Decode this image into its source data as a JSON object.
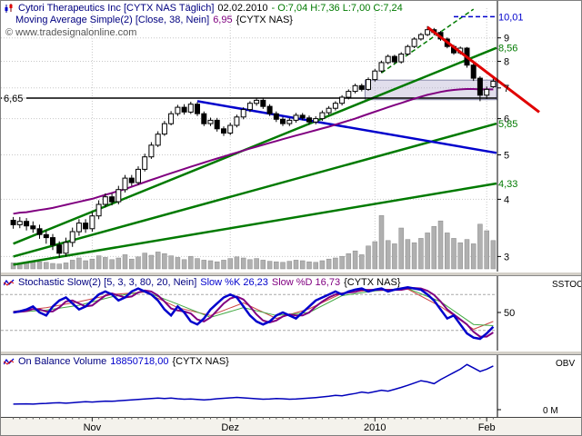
{
  "colors": {
    "navy": "#000080",
    "green_ohlc": "#007a00",
    "purple": "#800080",
    "blue": "#0000cc",
    "red": "#e00000",
    "trend_green": "#007a00",
    "grid": "#c8c8c8",
    "volume": "#b0b0b0",
    "volume_edge": "#8a8a8a",
    "bg": "#ffffff",
    "chrome": "#d4d0c8",
    "obv_line": "#0000bb"
  },
  "main_pane": {
    "header": {
      "title": "Cytori Therapeutics Inc [CYTX NAS  Täglich]",
      "date": "02.02.2010",
      "ohlc": "- O:7,04 H:7,36 L:7,00 C:7,24"
    },
    "ma_header": {
      "name": "Moving Average Simple(2) [Close, 38, Nein]",
      "value": "6,95",
      "symbol": "{CYTX NAS}"
    },
    "copyright": "© www.tradesignalonline.com",
    "left_label": "6,65"
  },
  "stoch_pane": {
    "header": {
      "name": "Stochastic Slow(2) [5, 3, 3, 80, 20, Nein]",
      "k_label": "Slow %K 26,23",
      "d_label": "Slow %D 16,73",
      "symbol": "{CYTX NAS}"
    },
    "axis_label": "SSTOC",
    "mid_label": "50",
    "mid_value": 50
  },
  "obv_pane": {
    "header": {
      "name": "On Balance Volume",
      "value": "18850718,00",
      "symbol": "{CYTX NAS}"
    },
    "axis_label": "OBV",
    "zero_label": "0 M",
    "zero_value": 0
  },
  "time_axis": {
    "labels": [
      {
        "text": "Nov",
        "day": 12
      },
      {
        "text": "Dez",
        "day": 33
      },
      {
        "text": "2010",
        "day": 55
      },
      {
        "text": "Feb",
        "day": 72
      }
    ]
  },
  "chart_data": {
    "type": "candlestick",
    "symbol": "CYTX NAS",
    "instrument": "Cytori Therapeutics Inc",
    "timeframe": "Täglich",
    "last_date": "02.02.2010",
    "last_ohlc": {
      "o": 7.04,
      "h": 7.36,
      "l": 7.0,
      "c": 7.24
    },
    "ma_period": 38,
    "ma_last_value": 6.95,
    "obv_last_value": 18850718.0,
    "stoch_last": {
      "k": 26.23,
      "d": 16.73
    },
    "y_scale": "log",
    "y_range": [
      2.82,
      10.45
    ],
    "y_axis": {
      "ticks": [
        3,
        4,
        5,
        6,
        7,
        8,
        9
      ],
      "special": [
        {
          "text": "10,01",
          "price": 10.01,
          "color": "blue"
        },
        {
          "text": "8,56",
          "price": 8.56,
          "color": "green"
        },
        {
          "text": "5,85",
          "price": 5.85,
          "color": "green"
        },
        {
          "text": "4,33",
          "price": 4.33,
          "color": "green"
        }
      ]
    },
    "candles": [
      [
        3.6,
        3.66,
        3.45,
        3.52
      ],
      [
        3.52,
        3.66,
        3.46,
        3.58
      ],
      [
        3.58,
        3.64,
        3.42,
        3.5
      ],
      [
        3.5,
        3.58,
        3.38,
        3.45
      ],
      [
        3.45,
        3.52,
        3.28,
        3.35
      ],
      [
        3.35,
        3.42,
        3.2,
        3.3
      ],
      [
        3.3,
        3.36,
        3.1,
        3.18
      ],
      [
        3.18,
        3.24,
        2.98,
        3.05
      ],
      [
        3.05,
        3.3,
        3.0,
        3.22
      ],
      [
        3.22,
        3.47,
        3.15,
        3.4
      ],
      [
        3.4,
        3.62,
        3.33,
        3.55
      ],
      [
        3.55,
        3.62,
        3.38,
        3.45
      ],
      [
        3.45,
        3.75,
        3.4,
        3.68
      ],
      [
        3.68,
        3.98,
        3.62,
        3.9
      ],
      [
        3.9,
        4.12,
        3.84,
        4.05
      ],
      [
        4.05,
        4.12,
        3.88,
        3.95
      ],
      [
        3.95,
        4.28,
        3.9,
        4.2
      ],
      [
        4.2,
        4.52,
        4.14,
        4.45
      ],
      [
        4.45,
        4.52,
        4.28,
        4.35
      ],
      [
        4.35,
        4.72,
        4.3,
        4.65
      ],
      [
        4.65,
        5.03,
        4.6,
        4.95
      ],
      [
        4.95,
        5.33,
        4.9,
        5.25
      ],
      [
        5.25,
        5.63,
        5.2,
        5.55
      ],
      [
        5.55,
        5.93,
        5.5,
        5.85
      ],
      [
        5.85,
        6.23,
        5.8,
        6.15
      ],
      [
        6.15,
        6.43,
        6.08,
        6.35
      ],
      [
        6.35,
        6.45,
        6.12,
        6.2
      ],
      [
        6.2,
        6.53,
        6.14,
        6.45
      ],
      [
        6.45,
        6.52,
        6.08,
        6.15
      ],
      [
        6.15,
        6.22,
        5.78,
        5.85
      ],
      [
        5.85,
        6.03,
        5.78,
        5.95
      ],
      [
        5.95,
        6.02,
        5.62,
        5.7
      ],
      [
        5.7,
        5.77,
        5.5,
        5.58
      ],
      [
        5.58,
        5.88,
        5.52,
        5.8
      ],
      [
        5.8,
        6.12,
        5.74,
        6.05
      ],
      [
        6.05,
        6.35,
        5.98,
        6.28
      ],
      [
        6.28,
        6.55,
        6.2,
        6.48
      ],
      [
        6.48,
        6.66,
        6.4,
        6.58
      ],
      [
        6.58,
        6.65,
        6.3,
        6.38
      ],
      [
        6.38,
        6.45,
        6.08,
        6.15
      ],
      [
        6.15,
        6.22,
        5.9,
        5.98
      ],
      [
        5.98,
        6.05,
        5.78,
        5.85
      ],
      [
        5.85,
        6.02,
        5.78,
        5.95
      ],
      [
        5.95,
        6.17,
        5.88,
        6.1
      ],
      [
        6.1,
        6.17,
        5.95,
        6.02
      ],
      [
        6.02,
        6.09,
        5.82,
        5.9
      ],
      [
        5.9,
        6.07,
        5.83,
        6.0
      ],
      [
        6.0,
        6.25,
        5.93,
        6.18
      ],
      [
        6.18,
        6.39,
        6.11,
        6.32
      ],
      [
        6.32,
        6.55,
        6.25,
        6.48
      ],
      [
        6.48,
        6.75,
        6.41,
        6.68
      ],
      [
        6.68,
        6.95,
        6.61,
        6.88
      ],
      [
        6.88,
        7.15,
        6.81,
        7.08
      ],
      [
        7.08,
        7.15,
        6.88,
        6.95
      ],
      [
        6.95,
        7.38,
        6.9,
        7.3
      ],
      [
        7.3,
        7.7,
        7.23,
        7.62
      ],
      [
        7.62,
        8.03,
        7.55,
        7.95
      ],
      [
        7.95,
        8.28,
        7.88,
        8.2
      ],
      [
        8.2,
        8.27,
        7.9,
        7.98
      ],
      [
        7.98,
        8.38,
        7.91,
        8.3
      ],
      [
        8.3,
        8.7,
        8.23,
        8.62
      ],
      [
        8.62,
        9.03,
        8.55,
        8.95
      ],
      [
        8.95,
        9.23,
        8.88,
        9.15
      ],
      [
        9.15,
        9.55,
        9.08,
        9.38
      ],
      [
        9.38,
        9.46,
        9.12,
        9.25
      ],
      [
        9.25,
        9.32,
        8.87,
        8.95
      ],
      [
        8.95,
        9.02,
        8.54,
        8.62
      ],
      [
        8.62,
        8.69,
        8.27,
        8.35
      ],
      [
        8.35,
        8.62,
        8.28,
        8.55
      ],
      [
        8.55,
        8.6,
        7.75,
        7.85
      ],
      [
        7.85,
        7.92,
        7.25,
        7.35
      ],
      [
        7.35,
        7.42,
        6.55,
        6.75
      ],
      [
        6.75,
        7.05,
        6.62,
        6.95
      ],
      [
        7.04,
        7.36,
        7.0,
        7.24
      ]
    ],
    "volume_millions": [
      1.1,
      1.0,
      1.2,
      1.4,
      1.3,
      1.2,
      1.0,
      0.9,
      1.1,
      1.6,
      2.0,
      1.5,
      1.8,
      2.4,
      2.1,
      1.7,
      2.0,
      2.6,
      1.8,
      2.2,
      2.9,
      2.5,
      3.1,
      2.8,
      2.4,
      2.1,
      1.7,
      2.3,
      1.9,
      1.6,
      1.5,
      1.3,
      1.6,
      1.9,
      2.2,
      2.0,
      1.7,
      1.9,
      1.6,
      1.4,
      1.3,
      1.2,
      1.4,
      1.6,
      1.5,
      1.3,
      1.2,
      1.5,
      1.8,
      2.0,
      2.3,
      2.8,
      3.3,
      2.6,
      4.2,
      5.0,
      9.8,
      5.2,
      4.6,
      7.5,
      5.4,
      4.8,
      5.6,
      6.6,
      7.8,
      8.8,
      6.6,
      5.6,
      4.8,
      5.4,
      4.6,
      8.2,
      7.0,
      5.2
    ],
    "ma38": [
      3.72,
      3.74,
      3.75,
      3.77,
      3.79,
      3.81,
      3.83,
      3.86,
      3.89,
      3.92,
      3.95,
      3.98,
      4.01,
      4.05,
      4.09,
      4.13,
      4.17,
      4.21,
      4.26,
      4.31,
      4.36,
      4.41,
      4.46,
      4.51,
      4.56,
      4.61,
      4.66,
      4.71,
      4.76,
      4.81,
      4.86,
      4.91,
      4.96,
      5.01,
      5.06,
      5.11,
      5.16,
      5.21,
      5.26,
      5.31,
      5.36,
      5.41,
      5.46,
      5.51,
      5.56,
      5.61,
      5.66,
      5.71,
      5.76,
      5.82,
      5.88,
      5.94,
      6.0,
      6.07,
      6.14,
      6.21,
      6.28,
      6.35,
      6.42,
      6.49,
      6.56,
      6.63,
      6.7,
      6.76,
      6.81,
      6.86,
      6.9,
      6.93,
      6.95,
      6.96,
      6.96,
      6.95,
      6.95,
      6.95
    ],
    "annotations": {
      "hline": {
        "price": 6.65,
        "label": "6,65"
      },
      "target_line": {
        "price": 10.01,
        "label": "10,01",
        "from_day": 67
      },
      "fan_lines": [
        {
          "from_day": 0,
          "from_price": 3.2,
          "to_price": 8.56,
          "label": "8,56"
        },
        {
          "from_day": 0,
          "from_price": 3.0,
          "to_price": 5.85,
          "label": "5,85"
        },
        {
          "from_day": 0,
          "from_price": 2.88,
          "to_price": 4.33,
          "label": "4,33"
        }
      ],
      "down_line_blue": {
        "from_day": 28,
        "from_price": 6.55,
        "to_price": 5.05
      },
      "down_line_red": {
        "from_day": 63,
        "from_price": 9.5,
        "to_day": 80,
        "to_price": 6.2
      },
      "dashed_up_line": {
        "from_day": 56,
        "from_price": 7.55,
        "to_day": 70,
        "to_price": 10.4
      },
      "zone_rect": {
        "from_day": 54,
        "price_low": 6.6,
        "price_high": 7.28
      }
    },
    "stochastic": {
      "upper": 80,
      "lower": 20,
      "range": [
        0,
        100
      ],
      "k": [
        50,
        52,
        55,
        60,
        50,
        45,
        60,
        70,
        75,
        65,
        55,
        60,
        70,
        80,
        85,
        80,
        70,
        75,
        85,
        90,
        85,
        80,
        70,
        55,
        45,
        60,
        50,
        35,
        30,
        40,
        55,
        65,
        75,
        80,
        75,
        60,
        45,
        35,
        30,
        35,
        45,
        50,
        45,
        40,
        50,
        60,
        70,
        75,
        80,
        85,
        80,
        85,
        88,
        90,
        85,
        88,
        90,
        85,
        88,
        90,
        92,
        90,
        88,
        80,
        70,
        55,
        40,
        45,
        30,
        15,
        8,
        6,
        15,
        26.2
      ],
      "d": [
        50,
        51,
        52.3,
        55.7,
        55,
        51.7,
        51.7,
        58.3,
        68.3,
        70,
        65,
        60,
        61.7,
        70,
        78.3,
        81.7,
        78.3,
        75,
        76.7,
        83.3,
        86.7,
        85,
        78.3,
        68.3,
        56.7,
        53.3,
        51.7,
        48.3,
        38.3,
        35,
        41.7,
        53.3,
        65,
        73.3,
        76.7,
        71.7,
        60,
        46.7,
        36.7,
        33.3,
        36.7,
        43.3,
        46.7,
        45,
        45,
        50,
        60,
        68.3,
        75,
        80,
        81.7,
        83.3,
        84.3,
        87.7,
        87.7,
        87.7,
        87.7,
        87.7,
        87.7,
        87.7,
        90,
        90.7,
        90,
        86,
        79.3,
        68.3,
        55,
        46.7,
        38.3,
        30,
        17.7,
        9.7,
        9.7,
        16.7
      ],
      "thin_red": {
        "days": [
          0,
          5,
          10,
          15,
          20,
          25,
          30,
          35,
          40,
          45,
          50,
          55,
          60,
          65,
          70,
          73
        ],
        "values": [
          52,
          58,
          68,
          80,
          84,
          58,
          45,
          66,
          40,
          56,
          82,
          88,
          89,
          60,
          22,
          35
        ]
      },
      "thin_green": {
        "days": [
          0,
          5,
          10,
          15,
          20,
          25,
          30,
          35,
          40,
          45,
          50,
          55,
          60,
          65,
          70,
          73
        ],
        "values": [
          50,
          54,
          62,
          76,
          85,
          64,
          42,
          58,
          45,
          50,
          78,
          86,
          90,
          68,
          30,
          28
        ]
      }
    },
    "obv_millions": [
      2.4,
      2.45,
      2.5,
      2.4,
      2.6,
      2.7,
      2.9,
      3.0,
      2.8,
      3.0,
      3.2,
      3.4,
      3.3,
      3.5,
      3.7,
      3.6,
      3.8,
      4.0,
      4.2,
      4.4,
      4.6,
      4.8,
      5.0,
      4.8,
      5.0,
      4.7,
      4.5,
      4.6,
      4.4,
      4.2,
      4.4,
      4.7,
      4.9,
      5.1,
      5.3,
      5.1,
      4.9,
      4.7,
      4.5,
      4.6,
      4.8,
      4.7,
      4.5,
      4.6,
      4.8,
      5.0,
      5.2,
      5.5,
      5.8,
      6.2,
      6.0,
      6.5,
      7.0,
      7.6,
      7.2,
      7.8,
      8.4,
      8.0,
      8.8,
      9.6,
      10.5,
      11.5,
      12.5,
      12.0,
      11.2,
      13.0,
      14.5,
      16.0,
      17.5,
      19.5,
      18.0,
      16.5,
      17.5,
      18.85
    ]
  }
}
